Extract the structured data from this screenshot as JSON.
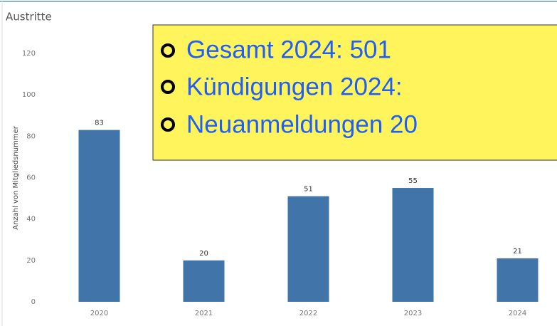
{
  "chart_data": {
    "type": "bar",
    "title": "Austritte",
    "y_label": "Anzahl von Mitgliedsnummer",
    "categories": [
      "2020",
      "2021",
      "2022",
      "2023",
      "2024"
    ],
    "values": [
      83,
      20,
      51,
      55,
      21
    ],
    "color": "#4174a8",
    "ylim": [
      0,
      120
    ],
    "yticks": [
      0,
      20,
      40,
      60,
      80,
      100,
      120
    ],
    "grid": false,
    "annotations": [
      "Gesamt 2024: 501",
      "Kündigungen 2024:",
      "Neuanmeldungen 20"
    ]
  }
}
